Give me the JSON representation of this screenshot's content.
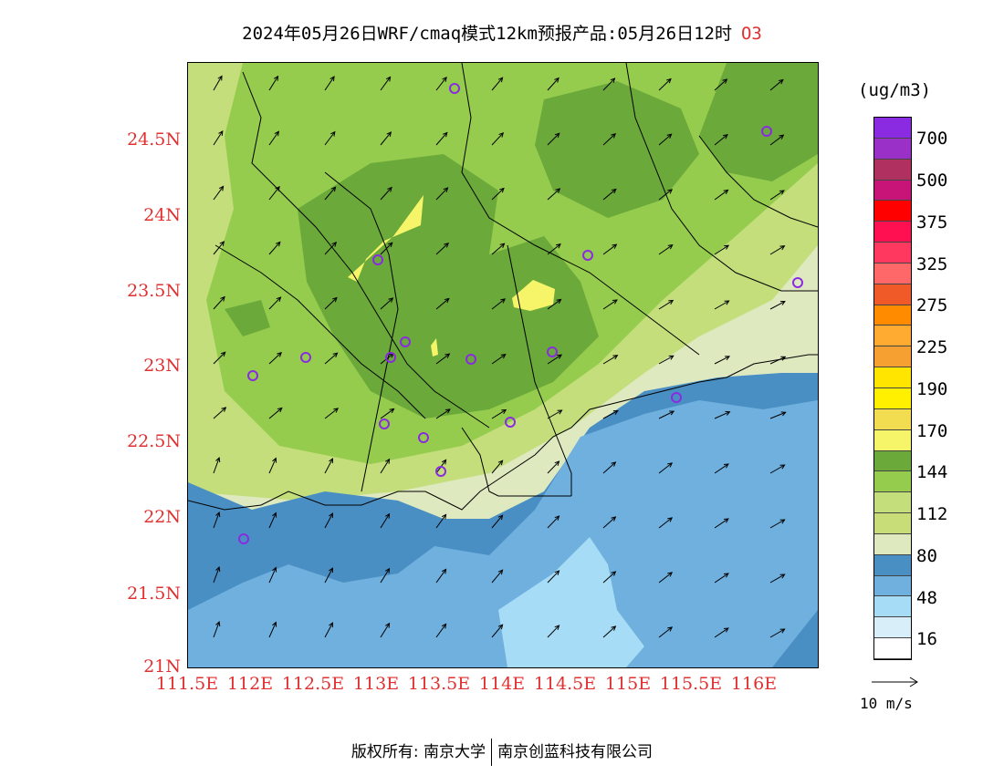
{
  "title": {
    "text": "2024年05月26日WRF/cmaq模式12km预报产品:05月26日12时",
    "pollutant": "O3"
  },
  "map": {
    "lat_labels": [
      "24.5N",
      "24N",
      "23.5N",
      "23N",
      "22.5N",
      "22N",
      "21.5N",
      "21N"
    ],
    "lon_labels": [
      "111.5E",
      "112E",
      "112.5E",
      "113E",
      "113.5E",
      "114E",
      "114.5E",
      "115E",
      "115.5E",
      "116E"
    ],
    "ozone_field_colors": {
      "deep_blue": "#4a8fc4",
      "mid_blue": "#6fb0de",
      "light_blue": "#a6dcf5",
      "pale_green": "#dfe9c0",
      "light_green": "#c3de7a",
      "green": "#95cc4e",
      "dark_green": "#6aa93a",
      "yellow": "#f6f56a"
    },
    "station_marker_color": "#8a2be2",
    "wind_arrow_color": "#000000",
    "boundary_color": "#000000"
  },
  "colorbar": {
    "unit": "(ug/m3)",
    "ticks": [
      "700",
      "500",
      "375",
      "325",
      "275",
      "225",
      "190",
      "170",
      "144",
      "112",
      "80",
      "48",
      "16"
    ],
    "colors": [
      "#8a2be2",
      "#9b30c8",
      "#b03060",
      "#c81478",
      "#ff0000",
      "#ff1050",
      "#ff3860",
      "#ff6868",
      "#f05a28",
      "#ff8c00",
      "#ffaa30",
      "#f5a030",
      "#ffe500",
      "#fff000",
      "#f2dd50",
      "#f6f56a",
      "#6aa93a",
      "#95cc4e",
      "#c3de7a",
      "#c8dc78",
      "#dfe9c0",
      "#4a8fc4",
      "#6fb0de",
      "#a6dcf5",
      "#d8effa",
      "#ffffff"
    ]
  },
  "reference_vector": {
    "label": "10 m/s"
  },
  "copyright": {
    "left": "版权所有: 南京大学",
    "right": "南京创蓝科技有限公司"
  }
}
